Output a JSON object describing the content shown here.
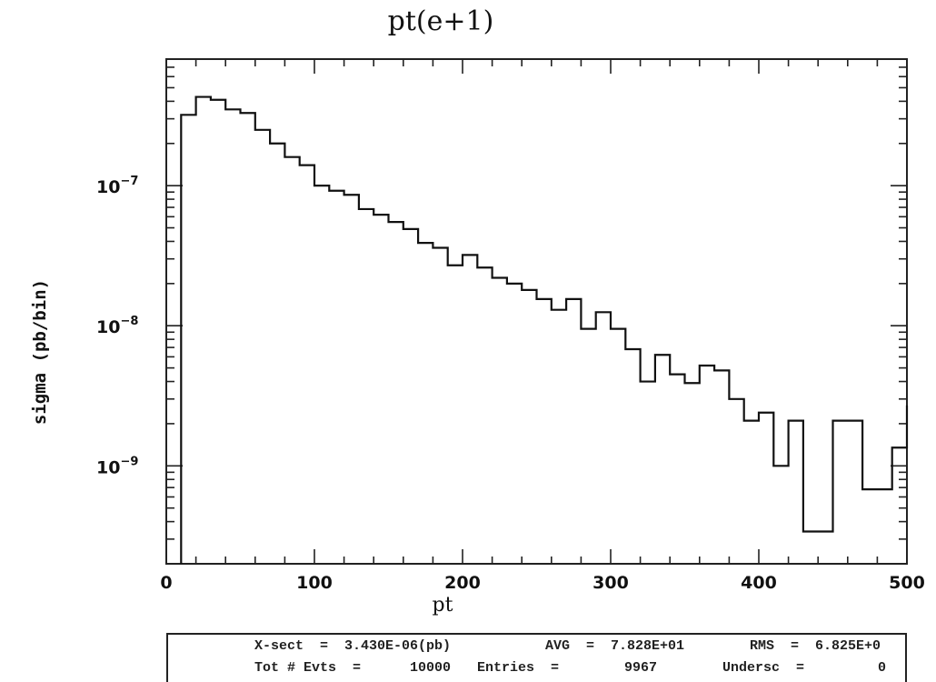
{
  "chart_data": {
    "type": "line",
    "title": "pt(e+1)",
    "xlabel": "pt",
    "ylabel": "sigma (pb/bin)",
    "xlim": [
      0,
      500
    ],
    "ylim": [
      2e-10,
      8e-07
    ],
    "y_scale": "log",
    "x_ticks": [
      "0",
      "100",
      "200",
      "300",
      "400",
      "500"
    ],
    "y_ticks": [
      {
        "base": "10",
        "exp": "−7",
        "value": 1e-07
      },
      {
        "base": "10",
        "exp": "−8",
        "value": 1e-08
      },
      {
        "base": "10",
        "exp": "−9",
        "value": 1e-09
      }
    ],
    "style": "step histogram",
    "bin_edges": [
      10,
      20,
      30,
      40,
      50,
      60,
      70,
      80,
      90,
      100,
      110,
      120,
      130,
      140,
      150,
      160,
      170,
      180,
      190,
      200,
      210,
      220,
      230,
      240,
      250,
      260,
      270,
      280,
      290,
      300,
      310,
      320,
      330,
      340,
      350,
      360,
      370,
      380,
      390,
      400,
      410,
      420,
      430,
      440,
      450,
      460,
      470,
      480,
      490,
      500
    ],
    "values": [
      3.2e-07,
      4.3e-07,
      4.1e-07,
      3.5e-07,
      3.3e-07,
      2.5e-07,
      2e-07,
      1.6e-07,
      1.4e-07,
      1e-07,
      9.2e-08,
      8.6e-08,
      6.8e-08,
      6.2e-08,
      5.5e-08,
      4.9e-08,
      3.9e-08,
      3.6e-08,
      2.7e-08,
      3.2e-08,
      2.6e-08,
      2.2e-08,
      2e-08,
      1.8e-08,
      1.55e-08,
      1.3e-08,
      1.55e-08,
      9.5e-09,
      1.25e-08,
      9.5e-09,
      6.8e-09,
      4e-09,
      6.2e-09,
      4.5e-09,
      3.9e-09,
      5.2e-09,
      4.8e-09,
      3e-09,
      2.1e-09,
      2.4e-09,
      1e-09,
      2.1e-09,
      3.4e-10,
      3.4e-10,
      2.1e-09,
      2.1e-09,
      6.8e-10,
      6.8e-10,
      1.35e-09,
      2.7e-09
    ]
  },
  "stats": {
    "row1": {
      "xsect": "X-sect  =  3.430E-06(pb)",
      "avg": "AVG  =  7.828E+01",
      "rms": "RMS  =  6.825E+0"
    },
    "row2": {
      "tot": "Tot # Evts  =      10000",
      "entries": "Entries  =        9967",
      "under": "Undersc  =         0"
    }
  }
}
